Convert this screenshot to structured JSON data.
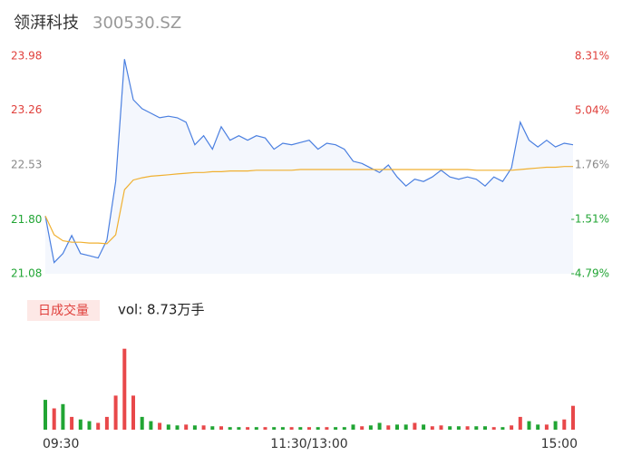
{
  "header": {
    "name": "领湃科技",
    "code": "300530.SZ"
  },
  "chart_data": {
    "type": "line",
    "x": [
      0,
      4,
      8,
      12,
      16,
      20,
      24,
      28,
      32,
      36,
      40,
      44,
      48,
      52,
      56,
      60,
      64,
      68,
      72,
      76,
      80,
      84,
      88,
      92,
      96,
      100,
      104,
      108,
      112,
      116,
      120,
      124,
      128,
      132,
      136,
      140,
      144,
      148,
      152,
      156,
      160,
      164,
      168,
      172,
      176,
      180,
      184,
      188,
      192,
      196,
      200,
      204,
      208,
      212,
      216,
      220,
      224,
      228,
      232,
      236,
      240
    ],
    "xlim": [
      0,
      240
    ],
    "xticks": [
      {
        "value": 0,
        "label": "09:30"
      },
      {
        "value": 120,
        "label": "11:30/13:00"
      },
      {
        "value": 240,
        "label": "15:00"
      }
    ],
    "ylim": [
      21.08,
      23.98
    ],
    "yticks": [
      23.98,
      23.26,
      22.53,
      {
        "value": 21.8,
        "label": "21.80"
      },
      21.08
    ],
    "y2lim": [
      -4.79,
      8.31
    ],
    "y2ticks": [
      {
        "value": 8.31,
        "label": "8.31%"
      },
      {
        "value": 5.04,
        "label": "5.04%"
      },
      {
        "value": 1.76,
        "label": "1.76%"
      },
      {
        "value": -1.51,
        "label": "-1.51%"
      },
      {
        "value": -4.79,
        "label": "-4.79%"
      }
    ],
    "series": [
      {
        "color": "#4a7fe0",
        "values": [
          21.85,
          21.23,
          21.35,
          21.59,
          21.35,
          21.32,
          21.29,
          21.53,
          22.31,
          23.94,
          23.4,
          23.28,
          23.22,
          23.16,
          23.18,
          23.16,
          23.1,
          22.8,
          22.92,
          22.74,
          23.04,
          22.86,
          22.92,
          22.86,
          22.92,
          22.89,
          22.74,
          22.82,
          22.8,
          22.83,
          22.86,
          22.74,
          22.82,
          22.8,
          22.74,
          22.58,
          22.55,
          22.49,
          22.43,
          22.53,
          22.37,
          22.25,
          22.34,
          22.31,
          22.37,
          22.46,
          22.37,
          22.34,
          22.37,
          22.34,
          22.25,
          22.37,
          22.31,
          22.49,
          23.1,
          22.86,
          22.77,
          22.86,
          22.77,
          22.82,
          22.8
        ]
      },
      {
        "color": "#f0b030",
        "values": [
          21.85,
          21.6,
          21.52,
          21.5,
          21.5,
          21.49,
          21.49,
          21.48,
          21.6,
          22.2,
          22.33,
          22.36,
          22.38,
          22.39,
          22.4,
          22.41,
          22.42,
          22.43,
          22.43,
          22.44,
          22.44,
          22.45,
          22.45,
          22.45,
          22.46,
          22.46,
          22.46,
          22.46,
          22.46,
          22.47,
          22.47,
          22.47,
          22.47,
          22.47,
          22.47,
          22.47,
          22.47,
          22.47,
          22.47,
          22.47,
          22.47,
          22.47,
          22.47,
          22.47,
          22.47,
          22.47,
          22.47,
          22.47,
          22.47,
          22.46,
          22.46,
          22.46,
          22.46,
          22.46,
          22.47,
          22.48,
          22.49,
          22.5,
          22.5,
          22.51,
          22.51
        ]
      }
    ],
    "volume": {
      "label": "日成交量",
      "text": "vol: 8.73万手",
      "ylim": [
        0,
        100
      ],
      "values": [
        35,
        25,
        30,
        15,
        12,
        10,
        8,
        15,
        40,
        95,
        40,
        15,
        10,
        8,
        6,
        5,
        6,
        5,
        5,
        4,
        4,
        3,
        3,
        3,
        3,
        3,
        3,
        3,
        3,
        3,
        3,
        3,
        3,
        3,
        3,
        6,
        4,
        5,
        8,
        5,
        6,
        6,
        8,
        6,
        4,
        5,
        4,
        4,
        4,
        4,
        4,
        3,
        3,
        5,
        15,
        10,
        6,
        6,
        10,
        12,
        28
      ],
      "colors": [
        "#21a534",
        "#e8484a",
        "#21a534",
        "#e8484a",
        "#21a534",
        "#21a534",
        "#e8484a",
        "#e8484a",
        "#e8484a",
        "#e8484a",
        "#e8484a",
        "#21a534",
        "#21a534",
        "#e8484a",
        "#21a534",
        "#21a534",
        "#e8484a",
        "#21a534",
        "#e8484a",
        "#21a534",
        "#e8484a",
        "#21a534",
        "#21a534",
        "#e8484a",
        "#21a534",
        "#e8484a",
        "#21a534",
        "#21a534",
        "#e8484a",
        "#21a534",
        "#e8484a",
        "#21a534",
        "#e8484a",
        "#21a534",
        "#21a534",
        "#21a534",
        "#e8484a",
        "#21a534",
        "#21a534",
        "#e8484a",
        "#21a534",
        "#21a534",
        "#e8484a",
        "#21a534",
        "#e8484a",
        "#e8484a",
        "#21a534",
        "#21a534",
        "#e8484a",
        "#21a534",
        "#21a534",
        "#e8484a",
        "#21a534",
        "#e8484a",
        "#e8484a",
        "#21a534",
        "#21a534",
        "#e8484a",
        "#21a534",
        "#e8484a",
        "#e8484a"
      ]
    }
  }
}
